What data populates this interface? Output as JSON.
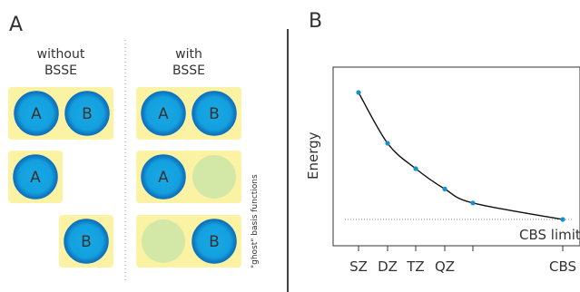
{
  "panelA": {
    "label": "A",
    "without": {
      "line1": "without",
      "line2": "BSSE"
    },
    "with": {
      "line1": "with",
      "line2": "BSSE"
    },
    "atom_a": "A",
    "atom_b": "B",
    "ghost_note": "\"ghost\" basis functions"
  },
  "panelB": {
    "label": "B",
    "ylabel": "Energy",
    "limit_label": "CBS limit"
  },
  "colors": {
    "box": "#fbf3a3",
    "atom_ring": "#0f77c4",
    "atom_fill": "#15a3e0",
    "ghost": "#d3e7a7",
    "curve": "#111111",
    "point": "#1590cf",
    "text": "#333333"
  },
  "chart_data": {
    "type": "line",
    "x_categories": [
      "SZ",
      "DZ",
      "TZ",
      "QZ",
      "",
      "CBS"
    ],
    "ylabel": "Energy",
    "series": [
      {
        "points": [
          [
            "SZ",
            1.0
          ],
          [
            "DZ",
            0.6
          ],
          [
            "TZ",
            0.4
          ],
          [
            "QZ",
            0.24
          ],
          [
            "",
            0.13
          ],
          [
            "CBS",
            0.0
          ]
        ]
      }
    ],
    "reference_line": {
      "label": "CBS limit",
      "y": 0.0,
      "style": "dotted"
    }
  }
}
